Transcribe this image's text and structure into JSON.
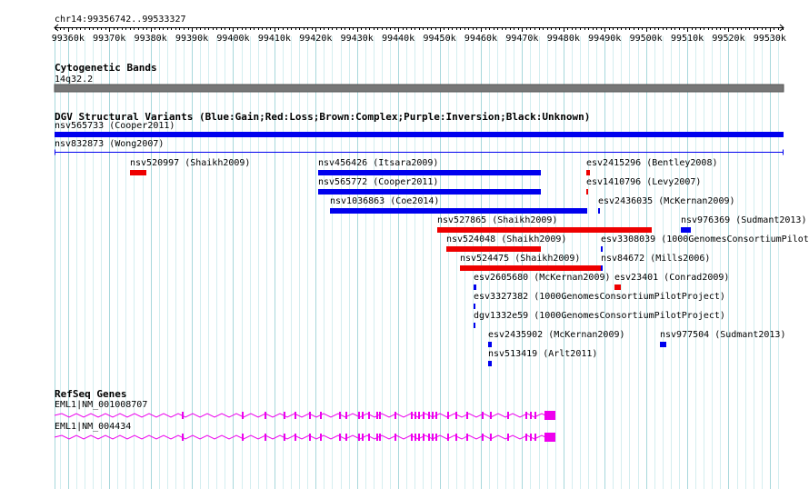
{
  "locus": "chr14:99356742..99533327",
  "ruler_ticks": [
    "99360k",
    "99370k",
    "99380k",
    "99390k",
    "99400k",
    "99410k",
    "99420k",
    "99430k",
    "99440k",
    "99450k",
    "99460k",
    "99470k",
    "99480k",
    "99490k",
    "99500k",
    "99510k",
    "99520k",
    "99530k"
  ],
  "tracks": {
    "cytoband": {
      "title": "Cytogenetic Bands",
      "band": "14q32.2"
    },
    "dgv": {
      "title": "DGV Structural Variants (Blue:Gain;Red:Loss;Brown:Complex;Purple:Inversion;Black:Unknown)",
      "legend": {
        "gain": "#0000ee",
        "loss": "#ee0000"
      },
      "features": [
        {
          "label": "nsv565733 (Cooper2011)",
          "type": "gain",
          "row": 0,
          "start": 99356742,
          "end": 99533327
        },
        {
          "label": "nsv832873 (Wong2007)",
          "type": "line",
          "row": 1,
          "start": 99356742,
          "end": 99533327
        },
        {
          "label": "nsv520997 (Shaikh2009)",
          "type": "loss",
          "row": 2,
          "start": 99375000,
          "end": 99379000
        },
        {
          "label": "nsv456426 (Itsara2009)",
          "type": "gain",
          "row": 2,
          "start": 99420500,
          "end": 99474500
        },
        {
          "label": "esv2415296 (Bentley2008)",
          "type": "loss",
          "row": 2,
          "start": 99485500,
          "end": 99486300
        },
        {
          "label": "nsv565772 (Cooper2011)",
          "type": "gain",
          "row": 3,
          "start": 99420500,
          "end": 99474500
        },
        {
          "label": "esv1410796 (Levy2007)",
          "type": "loss",
          "row": 3,
          "start": 99485500,
          "end": 99485800
        },
        {
          "label": "nsv1036863 (Coe2014)",
          "type": "gain",
          "row": 4,
          "start": 99423500,
          "end": 99485800
        },
        {
          "label": "esv2436035 (McKernan2009)",
          "type": "gain",
          "row": 4,
          "start": 99488400,
          "end": 99488800
        },
        {
          "label": "nsv527865 (Shaikh2009)",
          "type": "loss",
          "row": 5,
          "start": 99449500,
          "end": 99501500
        },
        {
          "label": "nsv976369 (Sudmant2013)",
          "type": "gain",
          "row": 5,
          "start": 99508500,
          "end": 99511000
        },
        {
          "label": "nsv524048 (Shaikh2009)",
          "type": "loss",
          "row": 6,
          "start": 99451700,
          "end": 99474500
        },
        {
          "label": "esv3308039 (1000GenomesConsortiumPilotProject)",
          "type": "gain",
          "row": 6,
          "start": 99489000,
          "end": 99489300
        },
        {
          "label": "nsv524475 (Shaikh2009)",
          "type": "loss",
          "row": 7,
          "start": 99455000,
          "end": 99489500
        },
        {
          "label": "nsv84672 (Mills2006)",
          "type": "gain",
          "row": 7,
          "start": 99489000,
          "end": 99489300
        },
        {
          "label": "esv2605680 (McKernan2009)",
          "type": "gain",
          "row": 8,
          "start": 99458200,
          "end": 99458900
        },
        {
          "label": "esv23401 (Conrad2009)",
          "type": "loss",
          "row": 8,
          "start": 99492400,
          "end": 99494000
        },
        {
          "label": "esv3327382 (1000GenomesConsortiumPilotProject)",
          "type": "gain",
          "row": 9,
          "start": 99458200,
          "end": 99458500
        },
        {
          "label": "dgv1332e59 (1000GenomesConsortiumPilotProject)",
          "type": "gain",
          "row": 10,
          "start": 99458200,
          "end": 99458500
        },
        {
          "label": "esv2435902 (McKernan2009)",
          "type": "gain",
          "row": 11,
          "start": 99461700,
          "end": 99462500
        },
        {
          "label": "nsv977504 (Sudmant2013)",
          "type": "gain",
          "row": 11,
          "start": 99503300,
          "end": 99504800
        },
        {
          "label": "nsv513419 (Arlt2011)",
          "type": "gain",
          "row": 12,
          "start": 99461700,
          "end": 99462500
        }
      ]
    },
    "refseq": {
      "title": "RefSeq Genes",
      "color": "#ee00ee",
      "transcripts": [
        {
          "label": "EML1|NM_001008707",
          "start": 99356742,
          "end": 99478000
        },
        {
          "label": "EML1|NM_004434",
          "start": 99356742,
          "end": 99478000
        }
      ],
      "exons": [
        99387500,
        99402000,
        99407700,
        99412300,
        99414800,
        99418400,
        99421100,
        99425600,
        99427300,
        99430300,
        99431200,
        99432800,
        99434600,
        99435400,
        99439100,
        99443100,
        99443900,
        99444800,
        99446000,
        99447300,
        99448200,
        99449000,
        99451800,
        99453800,
        99456400,
        99460300,
        99462300,
        99466500,
        99470900,
        99472000,
        99473000
      ]
    }
  }
}
